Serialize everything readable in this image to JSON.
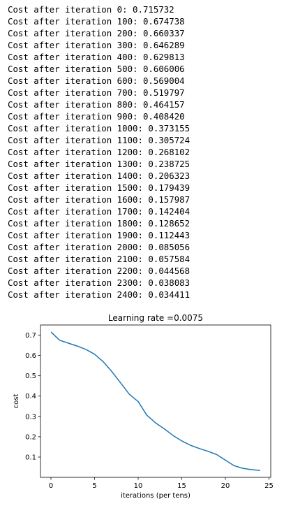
{
  "log_lines": [
    "Cost after iteration 0: 0.715732",
    "Cost after iteration 100: 0.674738",
    "Cost after iteration 200: 0.660337",
    "Cost after iteration 300: 0.646289",
    "Cost after iteration 400: 0.629813",
    "Cost after iteration 500: 0.606006",
    "Cost after iteration 600: 0.569004",
    "Cost after iteration 700: 0.519797",
    "Cost after iteration 800: 0.464157",
    "Cost after iteration 900: 0.408420",
    "Cost after iteration 1000: 0.373155",
    "Cost after iteration 1100: 0.305724",
    "Cost after iteration 1200: 0.268102",
    "Cost after iteration 1300: 0.238725",
    "Cost after iteration 1400: 0.206323",
    "Cost after iteration 1500: 0.179439",
    "Cost after iteration 1600: 0.157987",
    "Cost after iteration 1700: 0.142404",
    "Cost after iteration 1800: 0.128652",
    "Cost after iteration 1900: 0.112443",
    "Cost after iteration 2000: 0.085056",
    "Cost after iteration 2100: 0.057584",
    "Cost after iteration 2200: 0.044568",
    "Cost after iteration 2300: 0.038083",
    "Cost after iteration 2400: 0.034411"
  ],
  "chart_data": {
    "type": "line",
    "title": "Learning rate =0.0075",
    "xlabel": "iterations (per tens)",
    "ylabel": "cost",
    "xlim": [
      -1.2,
      25.2
    ],
    "ylim": [
      0.0003,
      0.7498
    ],
    "xticks": [
      0,
      5,
      10,
      15,
      20,
      25
    ],
    "yticks": [
      0.1,
      0.2,
      0.3,
      0.4,
      0.5,
      0.6,
      0.7
    ],
    "grid": false,
    "series": [
      {
        "color": "#1f77b4",
        "x": [
          0,
          1,
          2,
          3,
          4,
          5,
          6,
          7,
          8,
          9,
          10,
          11,
          12,
          13,
          14,
          15,
          16,
          17,
          18,
          19,
          20,
          21,
          22,
          23,
          24
        ],
        "y": [
          0.715732,
          0.674738,
          0.660337,
          0.646289,
          0.629813,
          0.606006,
          0.569004,
          0.519797,
          0.464157,
          0.40842,
          0.373155,
          0.305724,
          0.268102,
          0.238725,
          0.206323,
          0.179439,
          0.157987,
          0.142404,
          0.128652,
          0.112443,
          0.085056,
          0.057584,
          0.044568,
          0.038083,
          0.034411
        ]
      }
    ]
  }
}
